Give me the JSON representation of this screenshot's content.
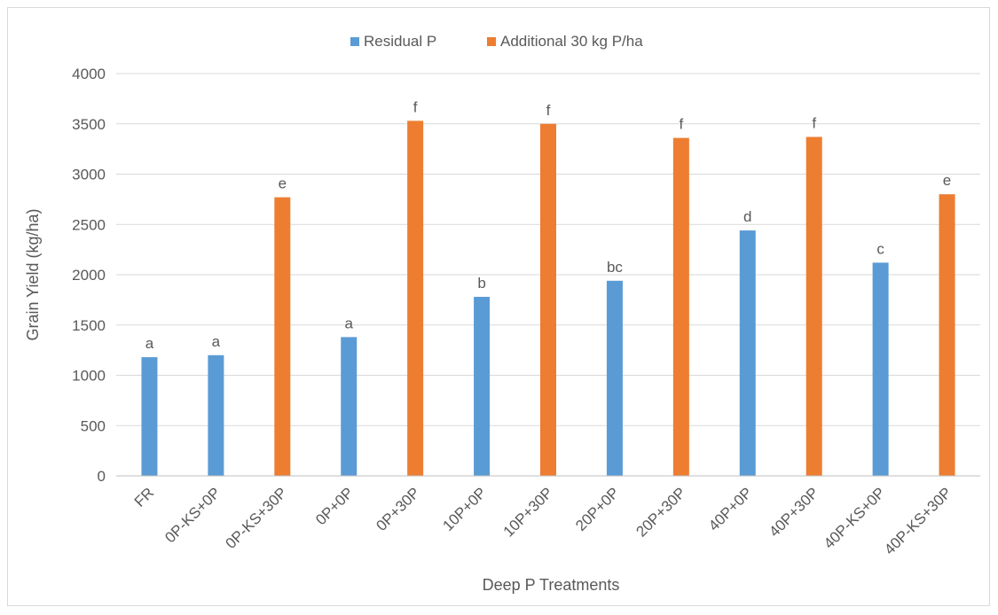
{
  "chart_data": {
    "type": "bar",
    "title": "",
    "xlabel": "Deep P Treatments",
    "ylabel": "Grain Yield (kg/ha)",
    "ylim": [
      0,
      4000
    ],
    "yticks": [
      0,
      500,
      1000,
      1500,
      2000,
      2500,
      3000,
      3500,
      4000
    ],
    "grid": true,
    "legend_position": "top",
    "categories": [
      "FR",
      "0P-KS+0P",
      "0P-KS+30P",
      "0P+0P",
      "0P+30P",
      "10P+0P",
      "10P+30P",
      "20P+0P",
      "20P+30P",
      "40P+0P",
      "40P+30P",
      "40P-KS+0P",
      "40P-KS+30P"
    ],
    "series": [
      {
        "name": "Residual P",
        "color": "#5b9bd5",
        "values": [
          1180,
          1200,
          null,
          1380,
          null,
          1780,
          null,
          1940,
          null,
          2440,
          null,
          2120,
          null
        ],
        "labels": [
          "a",
          "a",
          null,
          "a",
          null,
          "b",
          null,
          "bc",
          null,
          "d",
          null,
          "c",
          null
        ]
      },
      {
        "name": "Additional 30 kg P/ha",
        "color": "#ed7d31",
        "values": [
          null,
          null,
          2770,
          null,
          3530,
          null,
          3500,
          null,
          3360,
          null,
          3370,
          null,
          2800
        ],
        "labels": [
          null,
          null,
          "e",
          null,
          "f",
          null,
          "f",
          null,
          "f",
          null,
          "f",
          null,
          "e"
        ]
      }
    ]
  }
}
